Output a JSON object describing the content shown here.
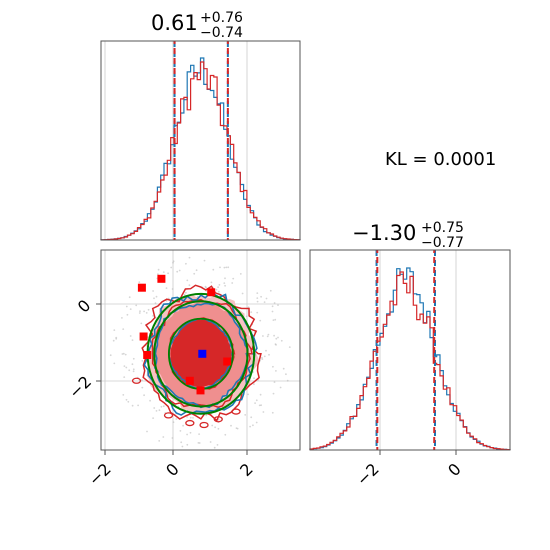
{
  "chart_data": {
    "type": "corner",
    "kl_label": "KL = 0.0001",
    "colors": {
      "blue": "#1f77b4",
      "red": "#d62728",
      "green": "#008000",
      "fill_red": "#e31a1c",
      "marker_blue": "#0000ff"
    },
    "param1": {
      "title_value": "0.61",
      "title_plus": "+0.76",
      "title_minus": "−0.74",
      "median": 0.61,
      "quantiles": [
        -0.13,
        1.37
      ],
      "xlim": [
        -2.2,
        3.4
      ],
      "ticks": [
        -2,
        0,
        2
      ],
      "tick_labels": [
        "−2",
        "0",
        "2"
      ]
    },
    "param2": {
      "title_value": "−1.30",
      "title_plus": "+0.75",
      "title_minus": "−0.77",
      "median": -1.3,
      "quantiles": [
        -2.07,
        -0.55
      ],
      "xlim": [
        -3.8,
        1.4
      ],
      "ticks": [
        -2,
        0
      ],
      "tick_labels": [
        "−2",
        "0"
      ],
      "red_quantiles": [
        -2.05,
        -0.57
      ]
    },
    "joint": {
      "xlim": [
        -2.2,
        3.4
      ],
      "ylim": [
        -3.8,
        1.4
      ],
      "y_ticks": [
        0,
        -2
      ],
      "y_tick_labels": [
        "0",
        "−2"
      ],
      "center": [
        0.61,
        -1.3
      ],
      "sigma": [
        0.75,
        0.76
      ],
      "red_markers": [
        [
          -1.05,
          0.42
        ],
        [
          -0.5,
          0.65
        ],
        [
          -0.9,
          -1.33
        ],
        [
          -1.0,
          -0.85
        ],
        [
          0.3,
          -2.0
        ],
        [
          0.6,
          -2.25
        ],
        [
          0.9,
          0.3
        ],
        [
          1.35,
          -1.5
        ]
      ],
      "blue_marker": [
        0.65,
        -1.3
      ]
    }
  }
}
